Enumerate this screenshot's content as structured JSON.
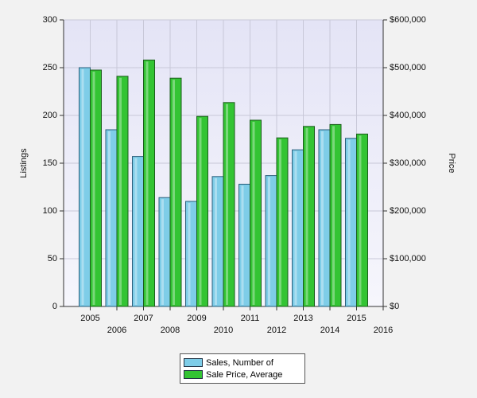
{
  "chart_data": {
    "type": "bar",
    "categories": [
      "2005",
      "2006",
      "2007",
      "2008",
      "2009",
      "2010",
      "2011",
      "2012",
      "2013",
      "2014",
      "2015",
      "2016"
    ],
    "series": [
      {
        "name": "Sales, Number of",
        "color": "#7ecde8",
        "values": [
          250,
          185,
          157,
          114,
          110,
          136,
          128,
          137,
          164,
          185,
          176,
          null
        ]
      },
      {
        "name": "Sale Price, Average",
        "color": "#33c433",
        "axis": "y2",
        "values": [
          495000,
          482000,
          516000,
          478000,
          398000,
          427000,
          390000,
          353000,
          377000,
          381000,
          361000,
          null
        ]
      }
    ],
    "ylabel": "Listings",
    "y2label": "Price",
    "ylim": [
      0,
      300
    ],
    "yticks": [
      0,
      50,
      100,
      150,
      200,
      250,
      300
    ],
    "y2lim": [
      0,
      600000
    ],
    "y2ticks": [
      {
        "value": 0,
        "label": "$0"
      },
      {
        "value": 100000,
        "label": "$100,000"
      },
      {
        "value": 200000,
        "label": "$200,000"
      },
      {
        "value": 300000,
        "label": "$300,000"
      },
      {
        "value": 400000,
        "label": "$400,000"
      },
      {
        "value": 500000,
        "label": "$500,000"
      },
      {
        "value": 600000,
        "label": "$600,000"
      }
    ],
    "grid": true
  }
}
